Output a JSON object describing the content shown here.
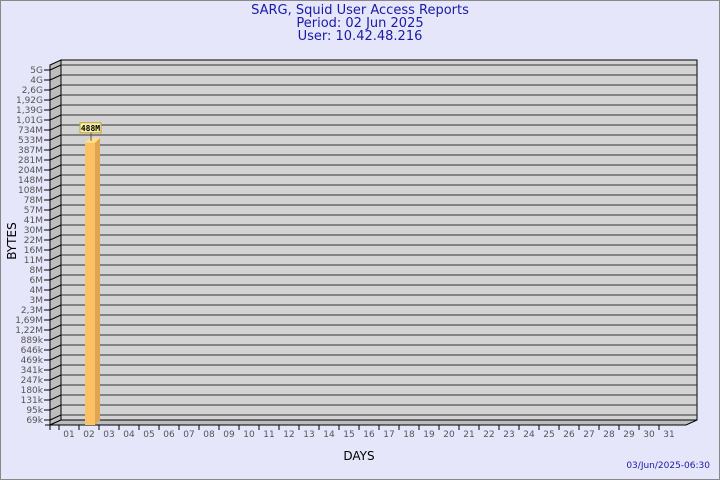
{
  "header": {
    "title": "SARG, Squid User Access Reports",
    "period": "Period: 02 Jun 2025",
    "user": "User: 10.42.48.216"
  },
  "footer": {
    "timestamp": "03/Jun/2025-06:30"
  },
  "colors": {
    "background": "#e6e6fa",
    "plot": "#d3d3d3",
    "bar": "#fbc164",
    "title": "#1a1aa6"
  },
  "chart_data": {
    "type": "bar",
    "xlabel": "DAYS",
    "ylabel": "BYTES",
    "y_scale": "log",
    "grid": true,
    "categories": [
      "01",
      "02",
      "03",
      "04",
      "05",
      "06",
      "07",
      "08",
      "09",
      "10",
      "11",
      "12",
      "13",
      "14",
      "15",
      "16",
      "17",
      "18",
      "19",
      "20",
      "21",
      "22",
      "23",
      "24",
      "25",
      "26",
      "27",
      "28",
      "29",
      "30",
      "31"
    ],
    "y_tick_labels": [
      "69k",
      "95k",
      "131k",
      "180k",
      "247k",
      "341k",
      "469k",
      "646k",
      "889k",
      "1,22M",
      "1,69M",
      "2,3M",
      "3M",
      "4M",
      "6M",
      "8M",
      "11M",
      "16M",
      "22M",
      "30M",
      "41M",
      "57M",
      "78M",
      "108M",
      "148M",
      "204M",
      "281M",
      "387M",
      "533M",
      "734M",
      "1,01G",
      "1,39G",
      "1,92G",
      "2,6G",
      "4G",
      "5G"
    ],
    "y_tick_values": [
      69000.0,
      95000.0,
      131000.0,
      180000.0,
      247000.0,
      341000.0,
      469000.0,
      646000.0,
      889000.0,
      1220000.0,
      1690000.0,
      2300000.0,
      3000000.0,
      4000000.0,
      6000000.0,
      8000000.0,
      11000000.0,
      16000000.0,
      22000000.0,
      30000000.0,
      41000000.0,
      57000000.0,
      78000000.0,
      108000000.0,
      148000000.0,
      204000000.0,
      281000000.0,
      387000000.0,
      533000000.0,
      734000000.0,
      1010000000.0,
      1390000000.0,
      1920000000.0,
      2600000000.0,
      4000000000.0,
      5000000000.0
    ],
    "series": [
      {
        "points": [
          {
            "x": "02",
            "y": 488000000,
            "label": "488M"
          }
        ]
      }
    ]
  }
}
